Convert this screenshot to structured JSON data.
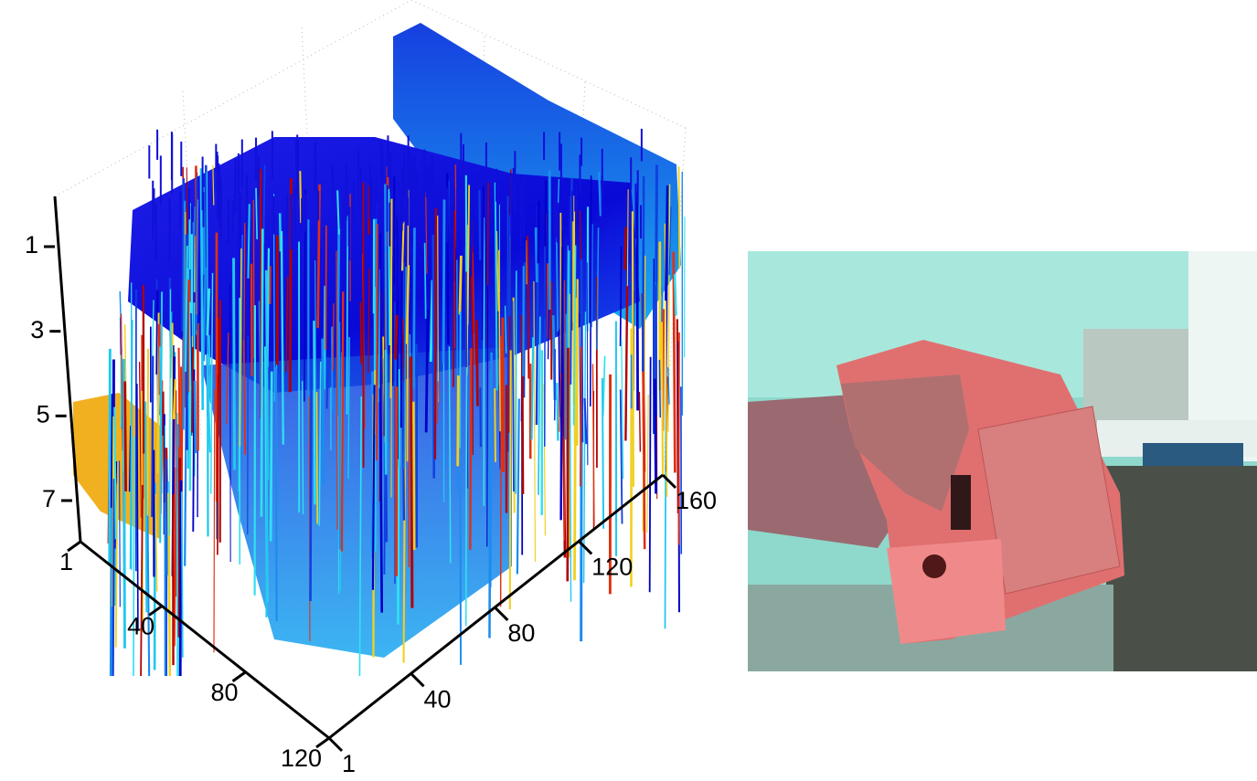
{
  "surface_plot": {
    "z_ticks": [
      1,
      3,
      5,
      7
    ],
    "x_ticks": [
      1,
      40,
      80,
      120
    ],
    "y_ticks": [
      1,
      40,
      80,
      120,
      160
    ]
  }
}
